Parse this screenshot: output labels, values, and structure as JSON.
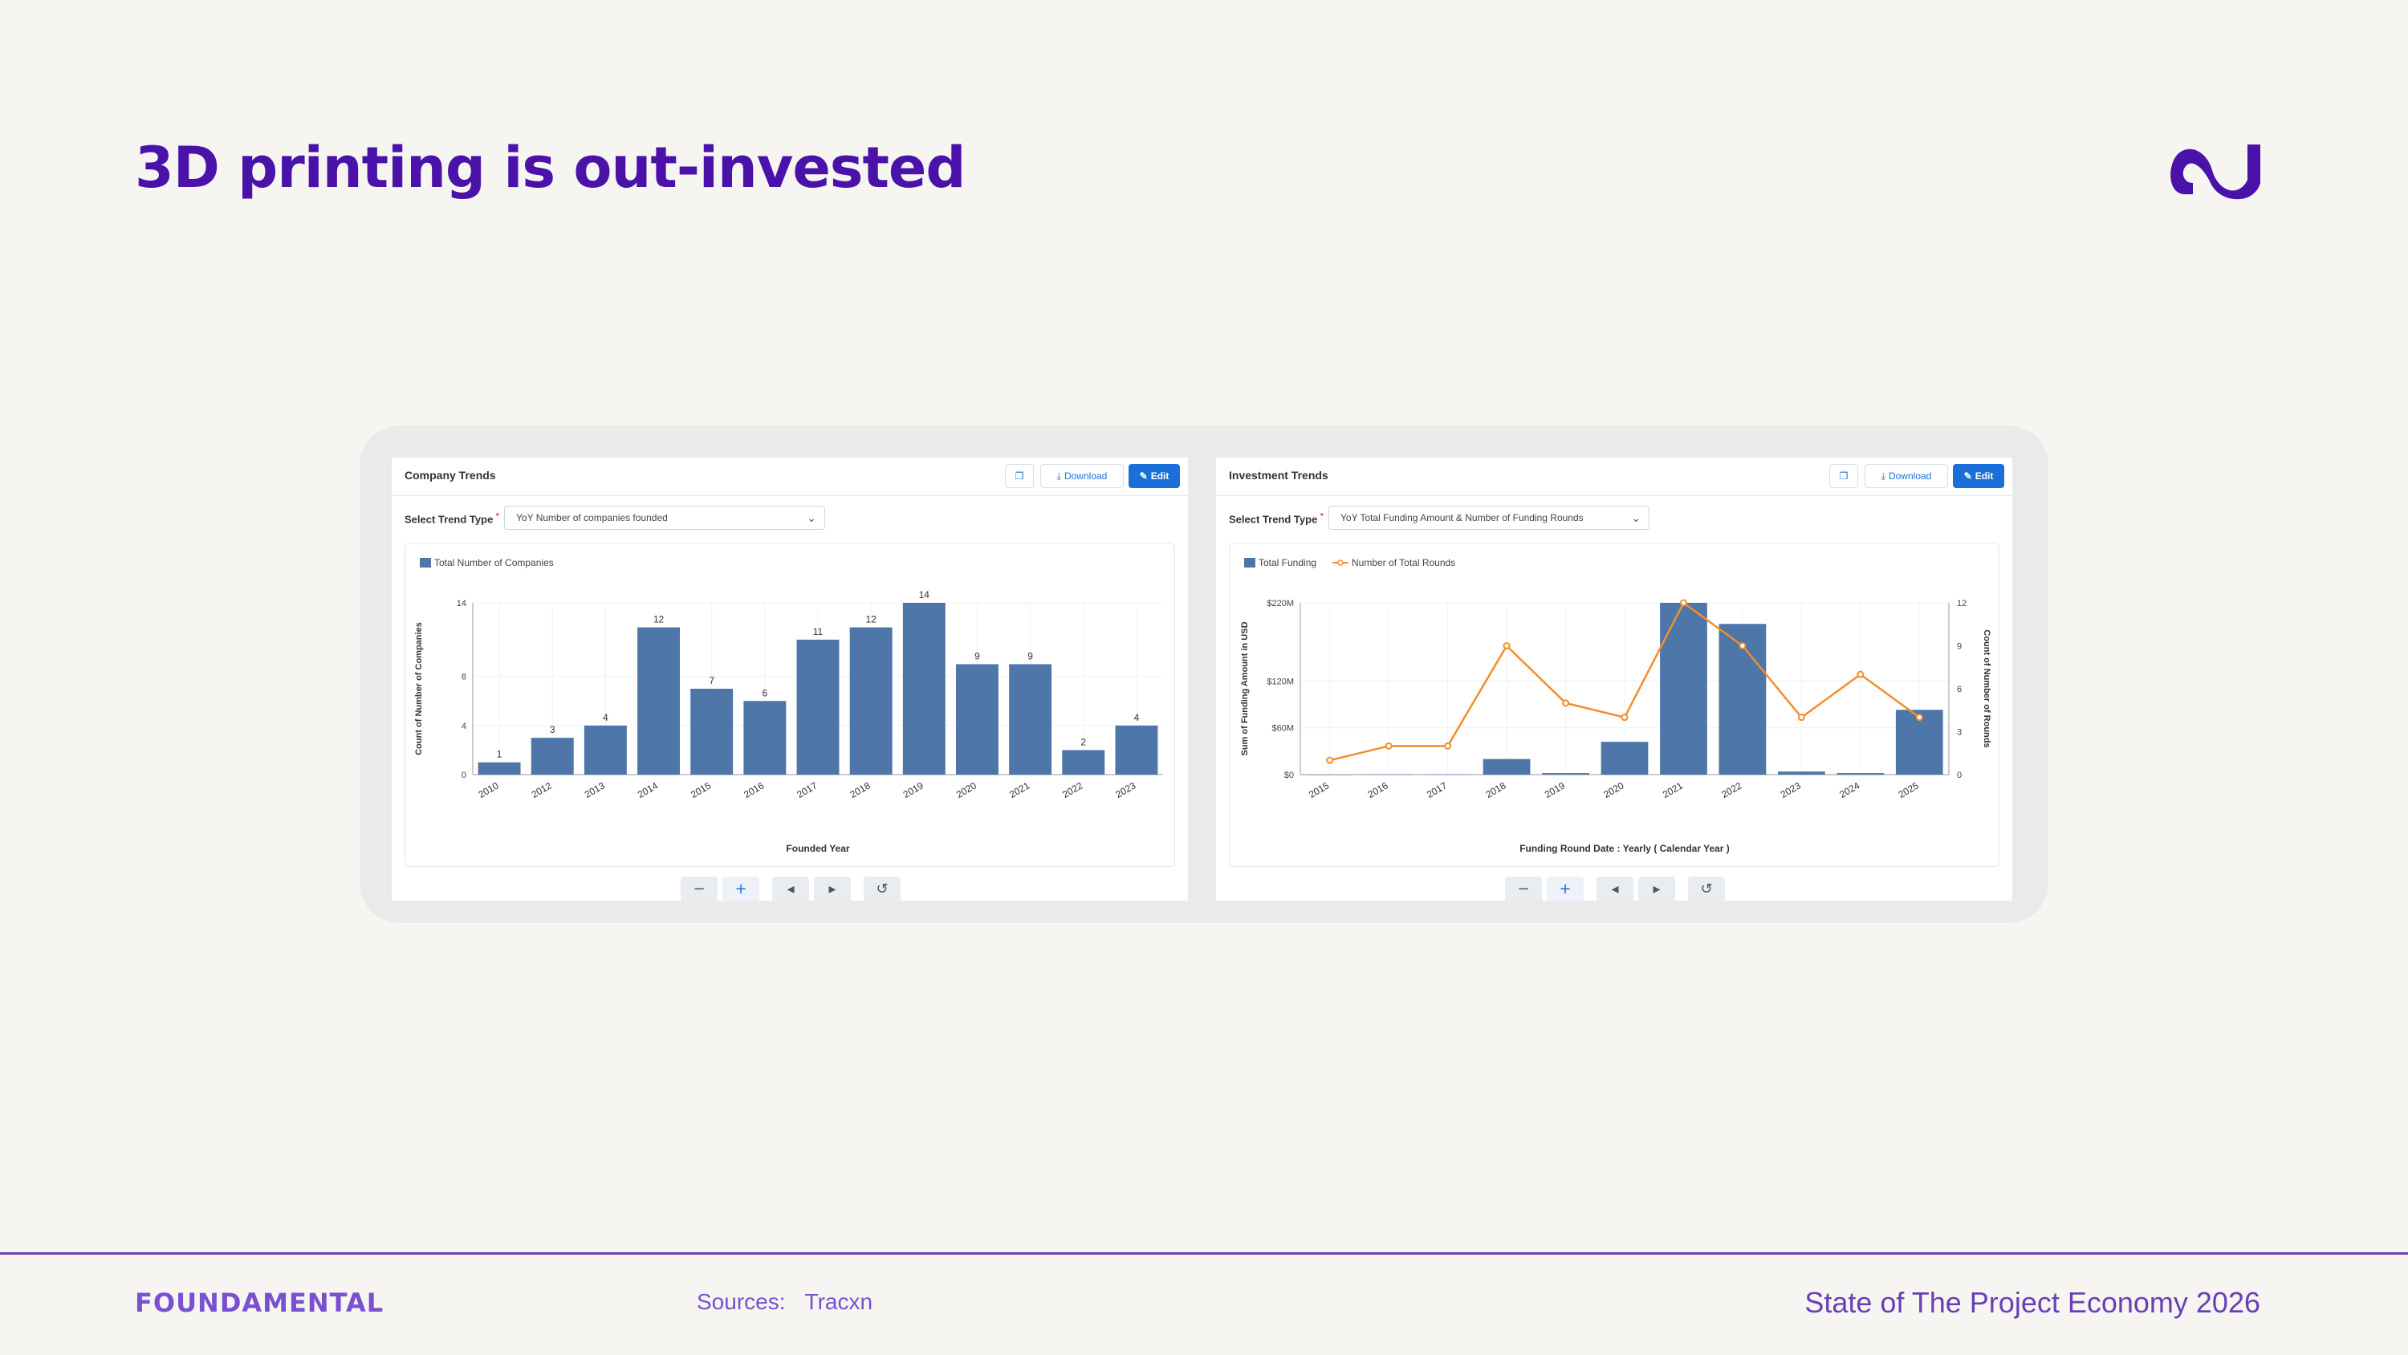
{
  "slide": {
    "title": "3D printing is out-invested",
    "footer_brand": "FOUNDAMENTAL",
    "sources_label": "Sources:",
    "sources_value": "Tracxn",
    "report_title": "State of The Project Economy 2026"
  },
  "colors": {
    "bar": "#4e76a8",
    "line": "#f28e2b",
    "title": "#4a12a8",
    "accent_button": "#1a6fd9"
  },
  "panels": [
    {
      "title": "Company Trends",
      "download_label": "Download",
      "edit_label": "Edit",
      "trend_type_label": "Select Trend Type",
      "trend_type_value": "YoY Number of companies founded"
    },
    {
      "title": "Investment Trends",
      "download_label": "Download",
      "edit_label": "Edit",
      "trend_type_label": "Select Trend Type",
      "trend_type_value": "YoY Total Funding Amount & Number of Funding Rounds"
    }
  ],
  "chart_data": [
    {
      "type": "bar",
      "legend": [
        "Total Number of Companies"
      ],
      "categories": [
        "2010",
        "2012",
        "2013",
        "2014",
        "2015",
        "2016",
        "2017",
        "2018",
        "2019",
        "2020",
        "2021",
        "2022",
        "2023"
      ],
      "series": [
        {
          "name": "Total Number of Companies",
          "values": [
            1,
            3,
            4,
            12,
            7,
            6,
            11,
            12,
            14,
            9,
            9,
            2,
            4
          ]
        }
      ],
      "xlabel": "Founded Year",
      "ylabel": "Count of Number of Companies",
      "ylim": [
        0,
        14
      ],
      "yticks": [
        0,
        4,
        8,
        14
      ],
      "data_labels": true,
      "legend_position": "top-left"
    },
    {
      "type": "bar+line",
      "legend": [
        "Total Funding",
        "Number of Total Rounds"
      ],
      "categories": [
        "2015",
        "2016",
        "2017",
        "2018",
        "2019",
        "2020",
        "2021",
        "2022",
        "2023",
        "2024",
        "2025"
      ],
      "series": [
        {
          "name": "Total Funding",
          "axis": "left",
          "unit": "USD",
          "values": [
            0,
            0.5,
            0.5,
            20,
            2,
            42,
            220,
            193,
            4,
            2,
            83
          ]
        },
        {
          "name": "Number of Total Rounds",
          "axis": "right",
          "values": [
            1,
            2,
            2,
            9,
            5,
            4,
            12,
            9,
            4,
            7,
            4
          ]
        }
      ],
      "xlabel": "Funding Round Date : Yearly ( Calendar Year )",
      "ylabel_left": "Sum of Funding Amount in USD",
      "ylabel_right": "Count of Number of Rounds",
      "ylim_left": [
        0,
        220
      ],
      "yticks_left": [
        "$0",
        "$60M",
        "$120M",
        "$220M"
      ],
      "ylim_right": [
        0,
        12
      ],
      "yticks_right": [
        0,
        3,
        6,
        9,
        12
      ],
      "legend_position": "top-left"
    }
  ]
}
